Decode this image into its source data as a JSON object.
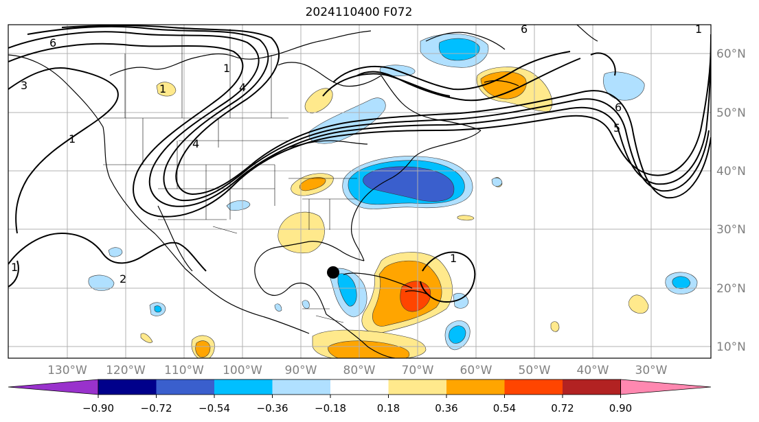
{
  "title": "2024110400 F072",
  "map": {
    "lon_labels": [
      "130°W",
      "120°W",
      "110°W",
      "100°W",
      "90°W",
      "80°W",
      "70°W",
      "60°W",
      "50°W",
      "40°W",
      "30°W"
    ],
    "lat_labels": [
      "60°N",
      "50°N",
      "40°N",
      "30°N",
      "20°N",
      "10°N"
    ],
    "contour_labels": [
      "6",
      "3",
      "1",
      "1",
      "4",
      "6",
      "5",
      "1",
      "1",
      "2",
      "1",
      "4",
      "6",
      "1"
    ],
    "storm_marker": {
      "lon": -84.5,
      "lat": 22.5
    }
  },
  "colorbar": {
    "tick_labels": [
      "−0.90",
      "−0.72",
      "−0.54",
      "−0.36",
      "−0.18",
      "0.18",
      "0.36",
      "0.54",
      "0.72",
      "0.90"
    ],
    "colors": [
      "#9932cc",
      "#00008b",
      "#3a5fcd",
      "#00bfff",
      "#b0e0ff",
      "#ffffff",
      "#ffe98c",
      "#ffa500",
      "#ff4500",
      "#b22222",
      "#ff88b0"
    ]
  },
  "colors": {
    "grid": "#b0b0b0",
    "coast": "#000000",
    "contour": "#000000",
    "axis_text": "#808080"
  }
}
